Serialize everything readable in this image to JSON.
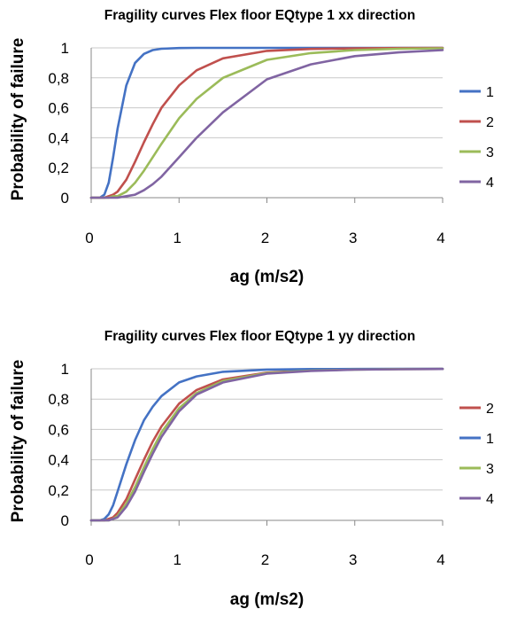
{
  "chart_data": [
    {
      "type": "line",
      "title": "Fragility curves Flex floor EQtype 1 xx direction",
      "xlabel": "ag (m/s2)",
      "ylabel": "Probability of failure",
      "xlim": [
        0,
        4
      ],
      "ylim": [
        0,
        1
      ],
      "x_ticks": [
        "0",
        "1",
        "2",
        "3",
        "4"
      ],
      "y_ticks": [
        "0",
        "0,2",
        "0,4",
        "0,6",
        "0,8",
        "1"
      ],
      "grid": "horizontal",
      "legend_position": "right",
      "x": [
        0,
        0.05,
        0.1,
        0.15,
        0.2,
        0.25,
        0.3,
        0.4,
        0.5,
        0.6,
        0.7,
        0.8,
        1.0,
        1.2,
        1.5,
        2.0,
        2.5,
        3.0,
        3.5,
        4.0
      ],
      "series": [
        {
          "name": "1",
          "color": "#4472c4",
          "values": [
            0,
            0.0,
            0.0,
            0.02,
            0.1,
            0.27,
            0.46,
            0.75,
            0.9,
            0.96,
            0.985,
            0.994,
            0.999,
            1.0,
            1.0,
            1.0,
            1.0,
            1.0,
            1.0,
            1.0
          ]
        },
        {
          "name": "2",
          "color": "#c0504d",
          "values": [
            0,
            0.0,
            0.0,
            0.0,
            0.01,
            0.02,
            0.04,
            0.12,
            0.24,
            0.37,
            0.49,
            0.6,
            0.75,
            0.85,
            0.93,
            0.98,
            0.993,
            0.997,
            0.999,
            1.0
          ]
        },
        {
          "name": "3",
          "color": "#9bbb59",
          "values": [
            0,
            0.0,
            0.0,
            0.0,
            0.0,
            0.01,
            0.01,
            0.04,
            0.1,
            0.18,
            0.27,
            0.36,
            0.53,
            0.66,
            0.8,
            0.92,
            0.965,
            0.985,
            0.994,
            0.997
          ]
        },
        {
          "name": "4",
          "color": "#8064a2",
          "values": [
            0,
            0.0,
            0.0,
            0.0,
            0.0,
            0.0,
            0.0,
            0.01,
            0.02,
            0.05,
            0.09,
            0.14,
            0.27,
            0.4,
            0.57,
            0.79,
            0.89,
            0.945,
            0.97,
            0.985
          ]
        }
      ],
      "legend_order": [
        "1",
        "2",
        "3",
        "4"
      ]
    },
    {
      "type": "line",
      "title": "Fragility curves Flex floor EQtype 1 yy direction",
      "xlabel": "ag (m/s2)",
      "ylabel": "Probability of failure",
      "xlim": [
        0,
        4
      ],
      "ylim": [
        0,
        1
      ],
      "x_ticks": [
        "0",
        "1",
        "2",
        "3",
        "4"
      ],
      "y_ticks": [
        "0",
        "0,2",
        "0,4",
        "0,6",
        "0,8",
        "1"
      ],
      "grid": "horizontal",
      "legend_position": "right",
      "x": [
        0,
        0.05,
        0.1,
        0.15,
        0.2,
        0.25,
        0.3,
        0.4,
        0.5,
        0.6,
        0.7,
        0.8,
        1.0,
        1.2,
        1.5,
        2.0,
        2.5,
        3.0,
        3.5,
        4.0
      ],
      "series": [
        {
          "name": "2",
          "color": "#c0504d",
          "values": [
            0,
            0.0,
            0.0,
            0.0,
            0.01,
            0.02,
            0.05,
            0.14,
            0.27,
            0.4,
            0.52,
            0.62,
            0.77,
            0.86,
            0.93,
            0.975,
            0.99,
            0.996,
            0.998,
            0.999
          ]
        },
        {
          "name": "1",
          "color": "#4472c4",
          "values": [
            0,
            0.0,
            0.0,
            0.01,
            0.04,
            0.1,
            0.19,
            0.37,
            0.53,
            0.66,
            0.75,
            0.82,
            0.91,
            0.95,
            0.98,
            0.995,
            0.998,
            0.999,
            1.0,
            1.0
          ]
        },
        {
          "name": "3",
          "color": "#9bbb59",
          "values": [
            0,
            0.0,
            0.0,
            0.0,
            0.0,
            0.01,
            0.03,
            0.11,
            0.22,
            0.35,
            0.47,
            0.58,
            0.74,
            0.84,
            0.92,
            0.972,
            0.988,
            0.995,
            0.998,
            0.999
          ]
        },
        {
          "name": "4",
          "color": "#8064a2",
          "values": [
            0,
            0.0,
            0.0,
            0.0,
            0.0,
            0.01,
            0.02,
            0.09,
            0.19,
            0.32,
            0.44,
            0.55,
            0.72,
            0.83,
            0.91,
            0.968,
            0.986,
            0.994,
            0.997,
            0.999
          ]
        }
      ],
      "legend_order": [
        "2",
        "1",
        "3",
        "4"
      ]
    }
  ]
}
